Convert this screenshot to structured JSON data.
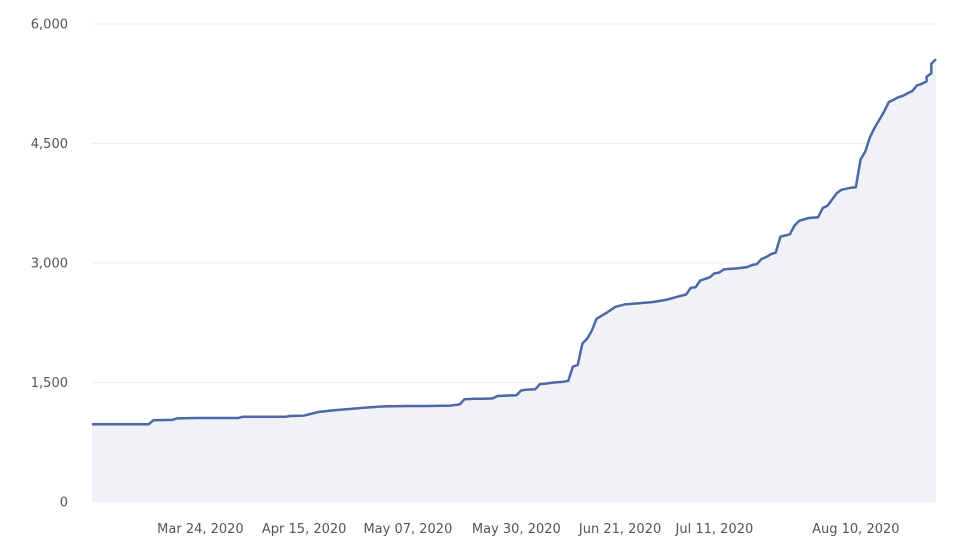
{
  "chart_data": {
    "type": "area",
    "title": "",
    "xlabel": "",
    "ylabel": "",
    "x_range": [
      "2020-03-01",
      "2020-08-27"
    ],
    "ylim": [
      0,
      6000
    ],
    "grid": true,
    "y_ticks": [
      {
        "value": 0,
        "label": "0"
      },
      {
        "value": 1500,
        "label": "1,500"
      },
      {
        "value": 3000,
        "label": "3,000"
      },
      {
        "value": 4500,
        "label": "4,500"
      },
      {
        "value": 6000,
        "label": "6,000"
      }
    ],
    "x_ticks": [
      {
        "date": "2020-03-24",
        "label": "Mar 24, 2020"
      },
      {
        "date": "2020-04-15",
        "label": "Apr 15, 2020"
      },
      {
        "date": "2020-05-07",
        "label": "May 07, 2020"
      },
      {
        "date": "2020-05-30",
        "label": "May 30, 2020"
      },
      {
        "date": "2020-06-21",
        "label": "Jun 21, 2020"
      },
      {
        "date": "2020-07-11",
        "label": "Jul 11, 2020"
      },
      {
        "date": "2020-08-10",
        "label": "Aug 10, 2020"
      }
    ],
    "colors": {
      "line": "#4c68a6",
      "fill": "#f0f2f8",
      "grid": "#eeeeee",
      "text": "#555555"
    },
    "series": [
      {
        "points": [
          [
            "2020-03-01",
            975
          ],
          [
            "2020-03-08",
            975
          ],
          [
            "2020-03-13",
            975
          ],
          [
            "2020-03-14",
            1025
          ],
          [
            "2020-03-18",
            1030
          ],
          [
            "2020-03-19",
            1050
          ],
          [
            "2020-03-23",
            1055
          ],
          [
            "2020-03-28",
            1055
          ],
          [
            "2020-04-01",
            1055
          ],
          [
            "2020-04-02",
            1070
          ],
          [
            "2020-04-09",
            1070
          ],
          [
            "2020-04-11",
            1070
          ],
          [
            "2020-04-12",
            1080
          ],
          [
            "2020-04-15",
            1085
          ],
          [
            "2020-04-18",
            1130
          ],
          [
            "2020-04-21",
            1150
          ],
          [
            "2020-04-24",
            1165
          ],
          [
            "2020-04-28",
            1185
          ],
          [
            "2020-05-02",
            1200
          ],
          [
            "2020-05-07",
            1205
          ],
          [
            "2020-05-11",
            1205
          ],
          [
            "2020-05-16",
            1210
          ],
          [
            "2020-05-18",
            1225
          ],
          [
            "2020-05-19",
            1290
          ],
          [
            "2020-05-21",
            1295
          ],
          [
            "2020-05-23",
            1295
          ],
          [
            "2020-05-25",
            1300
          ],
          [
            "2020-05-26",
            1330
          ],
          [
            "2020-05-28",
            1335
          ],
          [
            "2020-05-30",
            1340
          ],
          [
            "2020-05-31",
            1400
          ],
          [
            "2020-06-01",
            1410
          ],
          [
            "2020-06-03",
            1415
          ],
          [
            "2020-06-04",
            1480
          ],
          [
            "2020-06-05",
            1485
          ],
          [
            "2020-06-07",
            1500
          ],
          [
            "2020-06-09",
            1510
          ],
          [
            "2020-06-10",
            1520
          ],
          [
            "2020-06-11",
            1700
          ],
          [
            "2020-06-12",
            1720
          ],
          [
            "2020-06-13",
            1990
          ],
          [
            "2020-06-14",
            2050
          ],
          [
            "2020-06-15",
            2150
          ],
          [
            "2020-06-16",
            2300
          ],
          [
            "2020-06-18",
            2370
          ],
          [
            "2020-06-20",
            2450
          ],
          [
            "2020-06-22",
            2480
          ],
          [
            "2020-06-25",
            2495
          ],
          [
            "2020-06-28",
            2510
          ],
          [
            "2020-07-01",
            2540
          ],
          [
            "2020-07-03",
            2575
          ],
          [
            "2020-07-05",
            2605
          ],
          [
            "2020-07-06",
            2690
          ],
          [
            "2020-07-07",
            2695
          ],
          [
            "2020-07-08",
            2780
          ],
          [
            "2020-07-10",
            2820
          ],
          [
            "2020-07-11",
            2870
          ],
          [
            "2020-07-12",
            2880
          ],
          [
            "2020-07-13",
            2920
          ],
          [
            "2020-07-16",
            2935
          ],
          [
            "2020-07-18",
            2950
          ],
          [
            "2020-07-19",
            2975
          ],
          [
            "2020-07-20",
            2985
          ],
          [
            "2020-07-21",
            3050
          ],
          [
            "2020-07-22",
            3075
          ],
          [
            "2020-07-23",
            3110
          ],
          [
            "2020-07-24",
            3130
          ],
          [
            "2020-07-25",
            3330
          ],
          [
            "2020-07-27",
            3360
          ],
          [
            "2020-07-28",
            3470
          ],
          [
            "2020-07-29",
            3530
          ],
          [
            "2020-07-31",
            3565
          ],
          [
            "2020-08-02",
            3575
          ],
          [
            "2020-08-03",
            3690
          ],
          [
            "2020-08-04",
            3720
          ],
          [
            "2020-08-05",
            3800
          ],
          [
            "2020-08-06",
            3880
          ],
          [
            "2020-08-07",
            3920
          ],
          [
            "2020-08-09",
            3945
          ],
          [
            "2020-08-10",
            3950
          ],
          [
            "2020-08-11",
            4300
          ],
          [
            "2020-08-12",
            4400
          ],
          [
            "2020-08-13",
            4580
          ],
          [
            "2020-08-14",
            4700
          ],
          [
            "2020-08-15",
            4800
          ],
          [
            "2020-08-16",
            4900
          ],
          [
            "2020-08-17",
            5020
          ],
          [
            "2020-08-18",
            5050
          ],
          [
            "2020-08-19",
            5080
          ],
          [
            "2020-08-20",
            5100
          ],
          [
            "2020-08-21",
            5130
          ],
          [
            "2020-08-22",
            5160
          ],
          [
            "2020-08-23",
            5230
          ],
          [
            "2020-08-24",
            5250
          ],
          [
            "2020-08-25",
            5280
          ],
          [
            "2020-08-25",
            5340
          ],
          [
            "2020-08-26",
            5380
          ],
          [
            "2020-08-26",
            5500
          ],
          [
            "2020-08-27",
            5560
          ]
        ]
      }
    ]
  }
}
